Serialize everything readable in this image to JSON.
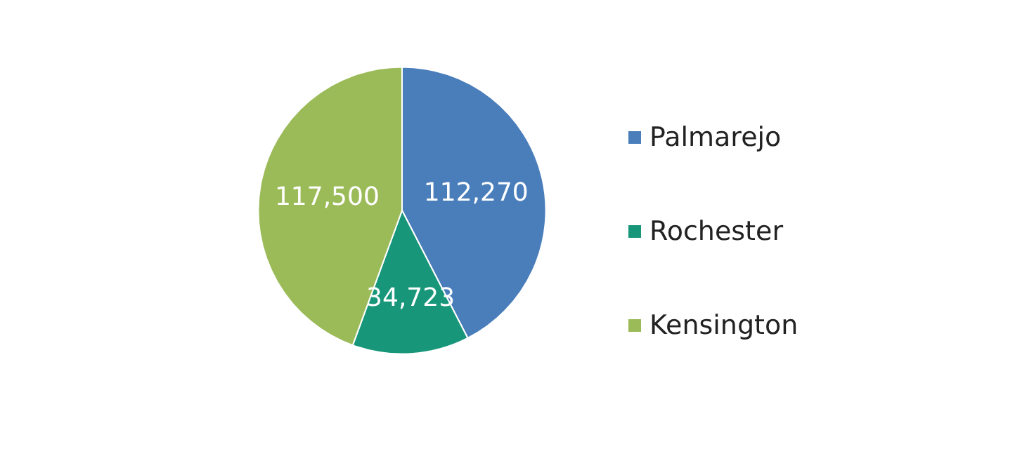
{
  "chart_data": {
    "type": "pie",
    "categories": [
      "Palmarejo",
      "Rochester",
      "Kensington"
    ],
    "values": [
      112270,
      34723,
      117500
    ],
    "colors": [
      "#4a7ebb",
      "#17967a",
      "#9bbb59"
    ],
    "value_labels": [
      "112,270",
      "34,723",
      "117,500"
    ],
    "legend": "right"
  }
}
